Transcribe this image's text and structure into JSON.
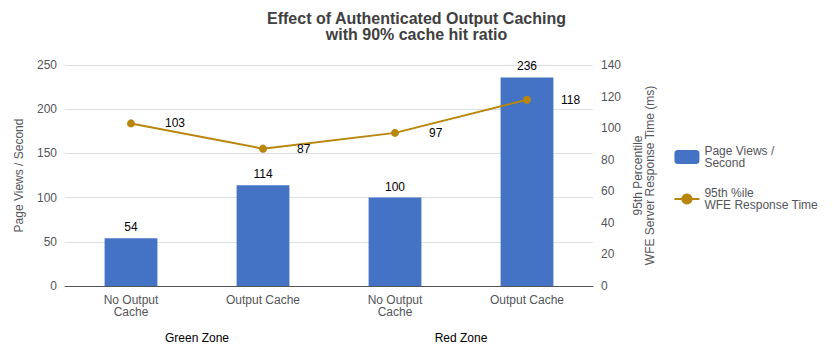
{
  "chart_data": {
    "type": "bar",
    "title": "Effect of Authenticated Output Caching\nwith 90% cache hit ratio",
    "categories": [
      "No Output\nCache",
      "Output Cache",
      "No Output\nCache",
      "Output Cache"
    ],
    "annotations": [
      "Green Zone",
      "Red Zone"
    ],
    "ylabel": "Page Views / Second",
    "y2label": "95th Percentile\nWFE Server Response Time (ms)",
    "ylim": [
      0,
      250
    ],
    "yticks": [
      0,
      50,
      100,
      150,
      200,
      250
    ],
    "y2lim": [
      0,
      140
    ],
    "y2ticks": [
      0,
      20,
      40,
      60,
      80,
      100,
      120,
      140
    ],
    "grid": true,
    "legend": "right",
    "series": [
      {
        "name": "Page Views /\nSecond",
        "type": "bar",
        "color": "#4472C4",
        "values": [
          54,
          114,
          100,
          236
        ],
        "data_labels": true
      },
      {
        "name": "95th %ile\nWFE Response Time",
        "type": "line",
        "axis": "y2",
        "color": "#B8860B",
        "marker": "circle",
        "values": [
          103,
          87,
          97,
          118
        ],
        "data_labels": true
      }
    ]
  }
}
